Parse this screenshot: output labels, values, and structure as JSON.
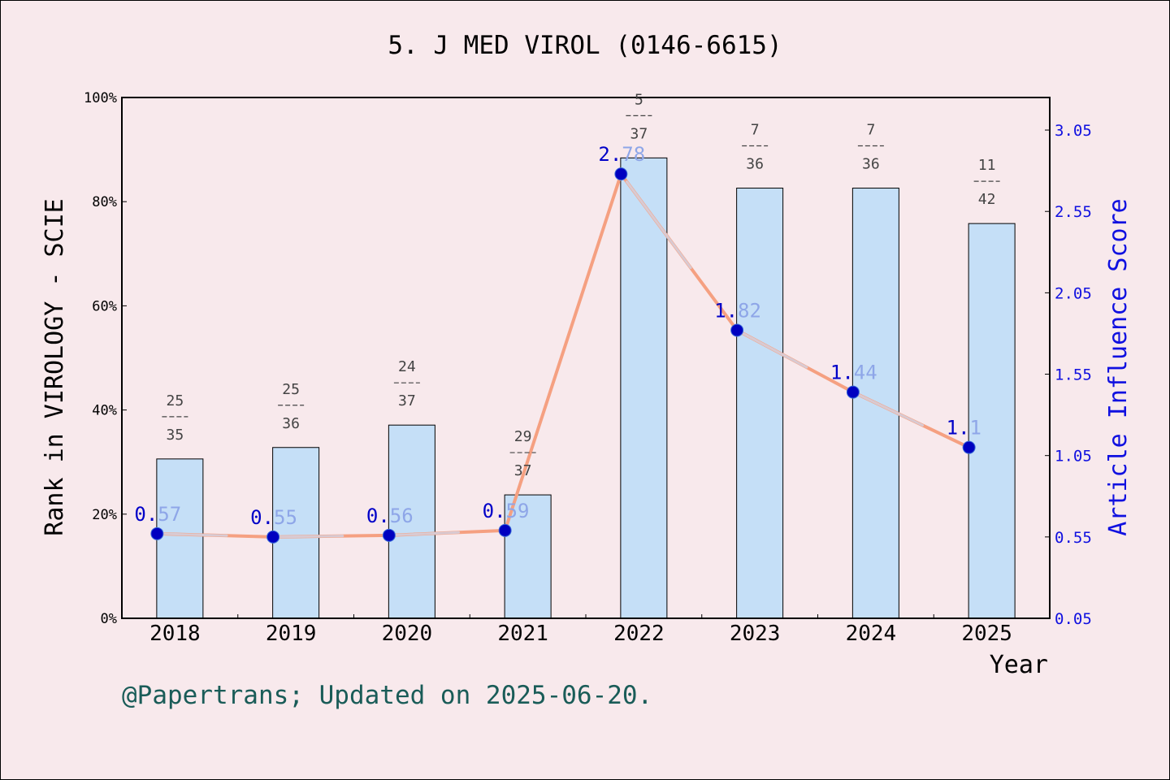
{
  "chart_data": {
    "type": "bar+line",
    "title": "5. J MED VIROL (0146-6615)",
    "xlabel": "Year",
    "ylabel": "Rank in VIROLOGY - SCIE",
    "y2label": "Article Influence Score",
    "categories": [
      "2018",
      "2019",
      "2020",
      "2021",
      "2022",
      "2023",
      "2024",
      "2025"
    ],
    "ylim": [
      0,
      100
    ],
    "yticks": [
      0,
      20,
      40,
      60,
      80,
      100
    ],
    "ytick_labels": [
      "0%",
      "20%",
      "40%",
      "60%",
      "80%",
      "100%"
    ],
    "y2lim": [
      0.05,
      3.25
    ],
    "y2ticks": [
      0.05,
      0.55,
      1.05,
      1.55,
      2.05,
      2.55,
      3.05
    ],
    "y2tick_labels": [
      "0.05",
      "0.55",
      "1.05",
      "1.55",
      "2.05",
      "2.55",
      "3.05"
    ],
    "bars": {
      "values": [
        30.6,
        32.8,
        37.1,
        23.7,
        88.4,
        82.6,
        82.6,
        75.8
      ],
      "rank_numerators": [
        "25",
        "25",
        "24",
        "29",
        "5",
        "7",
        "7",
        "11"
      ],
      "rank_denominators": [
        "35",
        "36",
        "37",
        "37",
        "37",
        "36",
        "36",
        "42"
      ],
      "color": "#c5dff7"
    },
    "line": {
      "values": [
        0.57,
        0.55,
        0.56,
        0.59,
        2.78,
        1.82,
        1.44,
        1.1
      ],
      "labels": [
        "0.57",
        "0.55",
        "0.56",
        "0.59",
        "2.78",
        "1.82",
        "1.44",
        "1.1"
      ],
      "color": "#f5a081",
      "marker_color": "#0000c0"
    },
    "grid": false
  },
  "footer": "@Papertrans; Updated on 2025-06-20."
}
